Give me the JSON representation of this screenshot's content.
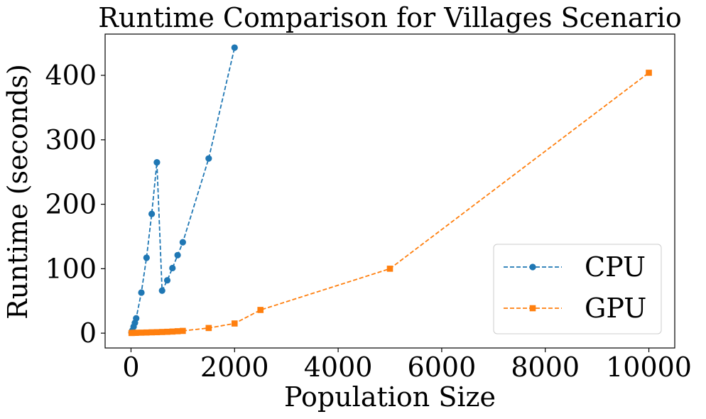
{
  "chart_data": {
    "type": "line",
    "title": "Runtime Comparison for Villages Scenario",
    "xlabel": "Population Size",
    "ylabel": "Runtime (seconds)",
    "xlim": [
      -500,
      10500
    ],
    "ylim": [
      -23,
      464
    ],
    "xticks": [
      0,
      2000,
      4000,
      6000,
      8000,
      10000
    ],
    "yticks": [
      0,
      100,
      200,
      300,
      400
    ],
    "grid": false,
    "legend_position": "lower-right",
    "series": [
      {
        "name": "CPU",
        "color": "#1f77b4",
        "marker": "circle",
        "linestyle": "dashed",
        "x": [
          10,
          25,
          50,
          75,
          100,
          200,
          300,
          400,
          500,
          600,
          700,
          800,
          900,
          1000,
          1500,
          2000
        ],
        "y": [
          1,
          4,
          10,
          16,
          23,
          63,
          117,
          185,
          265,
          66,
          82,
          101,
          121,
          141,
          271,
          443
        ]
      },
      {
        "name": "GPU",
        "color": "#ff7f0e",
        "marker": "square",
        "linestyle": "dashed",
        "x": [
          10,
          25,
          50,
          75,
          100,
          200,
          300,
          400,
          500,
          600,
          700,
          800,
          900,
          1000,
          1500,
          2000,
          2500,
          5000,
          10000
        ],
        "y": [
          0.3,
          0.4,
          0.5,
          0.5,
          0.6,
          0.8,
          1.0,
          1.3,
          1.5,
          1.8,
          2.1,
          2.5,
          3.0,
          3.5,
          8,
          15,
          36,
          100,
          404
        ]
      }
    ]
  }
}
